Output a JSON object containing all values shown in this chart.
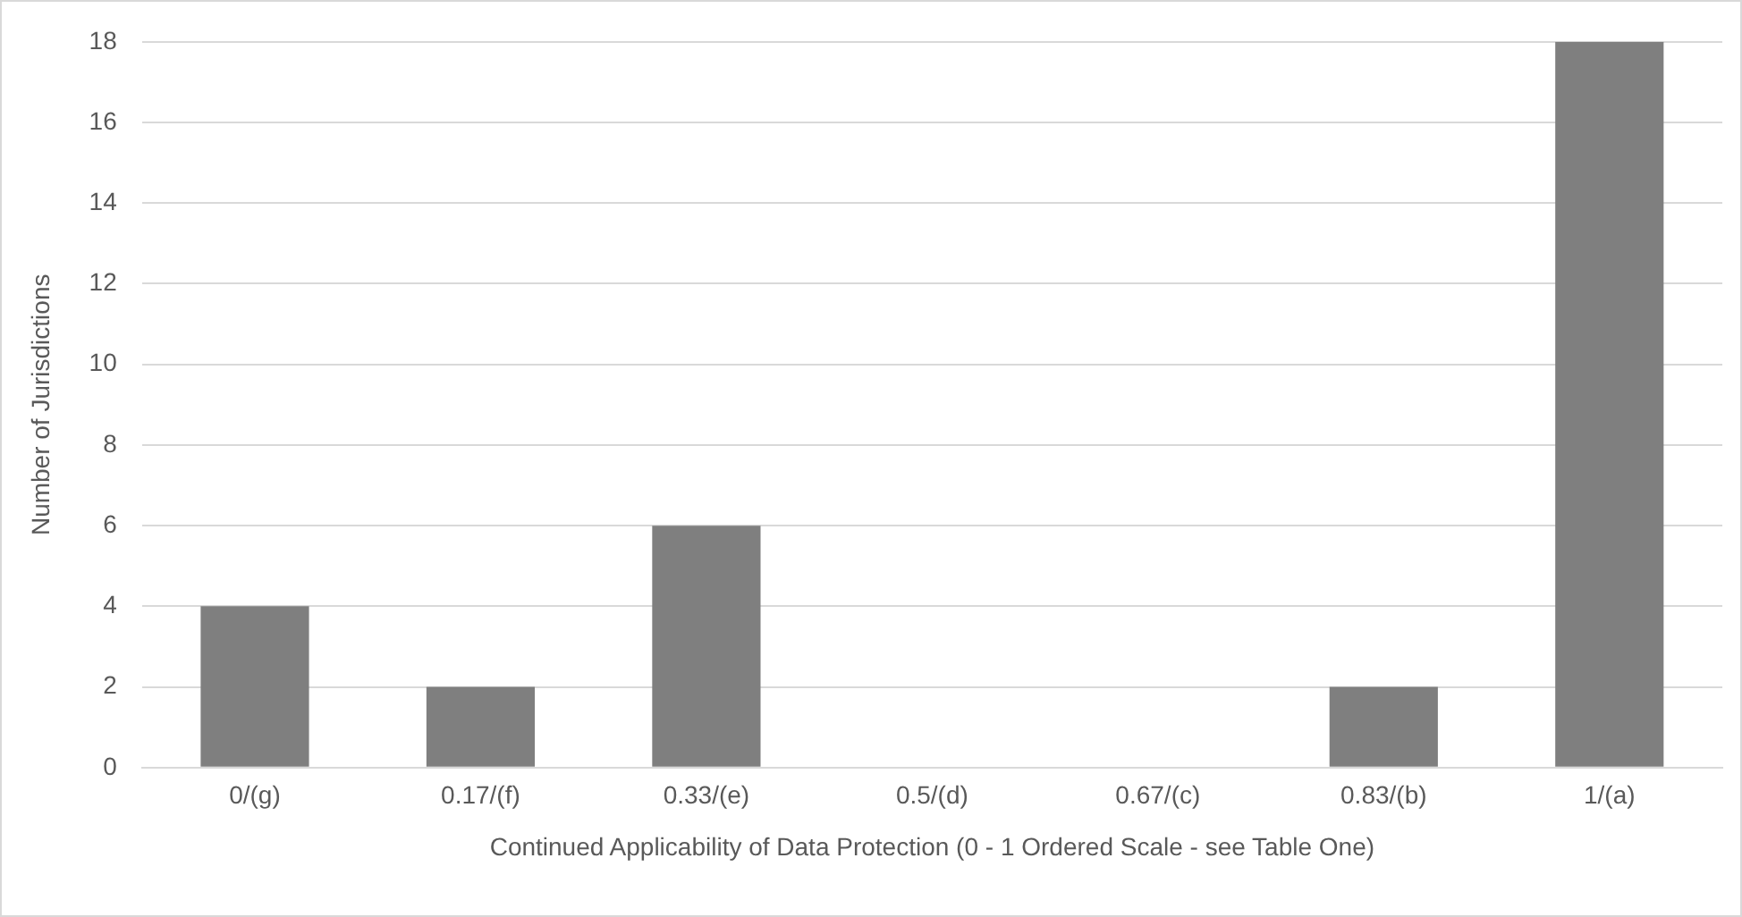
{
  "chart_data": {
    "type": "bar",
    "xlabel": "Continued Applicability of Data Protection (0 - 1 Ordered Scale - see Table One)",
    "ylabel": "Number of Jurisdictions",
    "categories": [
      "0/(g)",
      "0.17/(f)",
      "0.33/(e)",
      "0.5/(d)",
      "0.67/(c)",
      "0.83/(b)",
      "1/(a)"
    ],
    "values": [
      4,
      2,
      6,
      0,
      0,
      2,
      18
    ],
    "color": "#7f7f7f",
    "ylim": [
      0,
      18
    ],
    "yticks": [
      0,
      2,
      4,
      6,
      8,
      10,
      12,
      14,
      16,
      18
    ],
    "grid": "y"
  }
}
